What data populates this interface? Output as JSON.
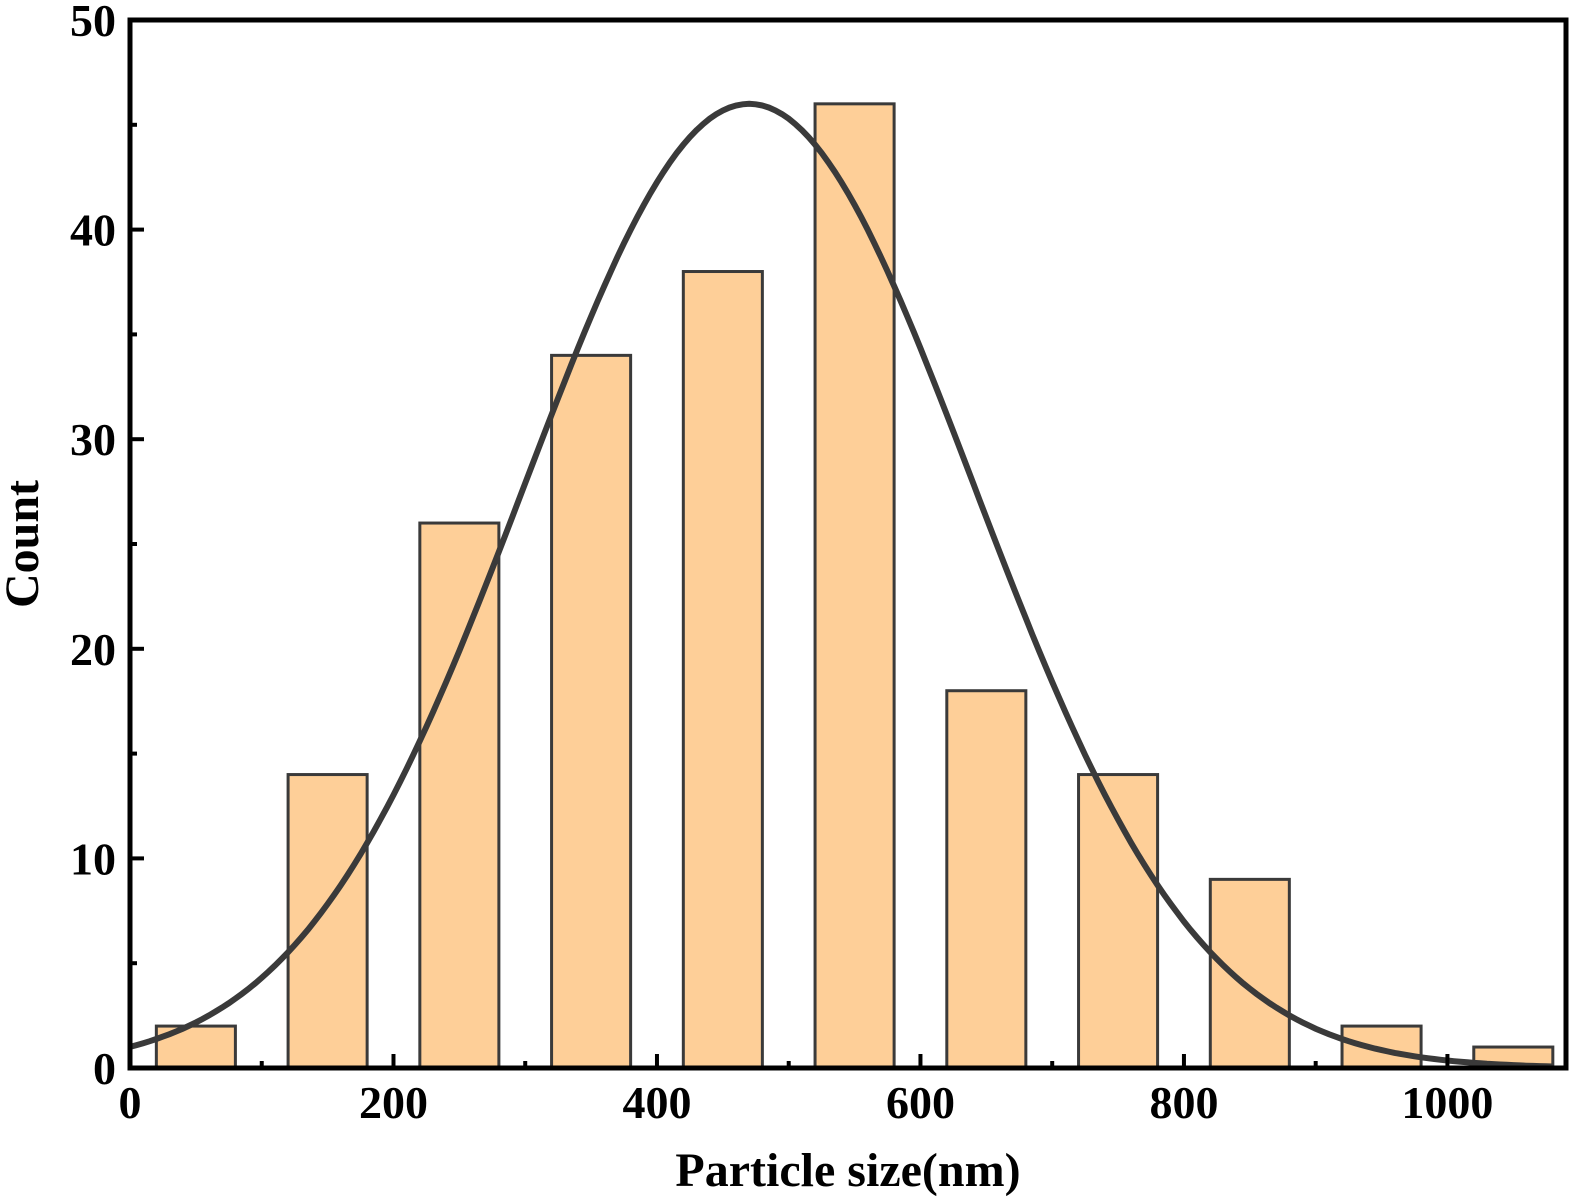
{
  "chart_data": {
    "type": "bar",
    "xlabel": "Particle size(nm)",
    "ylabel": "Count",
    "xlim": [
      0,
      1090
    ],
    "ylim": [
      0,
      50
    ],
    "bin_width": 60,
    "bins": [
      {
        "center": 50,
        "value": 2
      },
      {
        "center": 150,
        "value": 14
      },
      {
        "center": 250,
        "value": 26
      },
      {
        "center": 350,
        "value": 34
      },
      {
        "center": 450,
        "value": 38
      },
      {
        "center": 550,
        "value": 46
      },
      {
        "center": 650,
        "value": 18
      },
      {
        "center": 750,
        "value": 14
      },
      {
        "center": 850,
        "value": 9
      },
      {
        "center": 950,
        "value": 2
      },
      {
        "center": 1050,
        "value": 1
      }
    ],
    "fit_curve": {
      "type": "gaussian",
      "peak_x": 470,
      "peak_y": 46,
      "sigma": 170
    },
    "x_ticks": [
      0,
      200,
      400,
      600,
      800,
      1000
    ],
    "x_tick_labels": [
      "0",
      "200",
      "400",
      "600",
      "800",
      "1000"
    ],
    "y_ticks": [
      0,
      10,
      20,
      30,
      40,
      50
    ],
    "y_tick_labels": [
      "0",
      "10",
      "20",
      "30",
      "40",
      "50"
    ],
    "colors": {
      "bar_fill": "#FECF98",
      "bar_stroke": "#3A3A3A",
      "curve": "#3A3A3A",
      "axis": "#000000"
    },
    "grid": false,
    "legend": "none"
  }
}
